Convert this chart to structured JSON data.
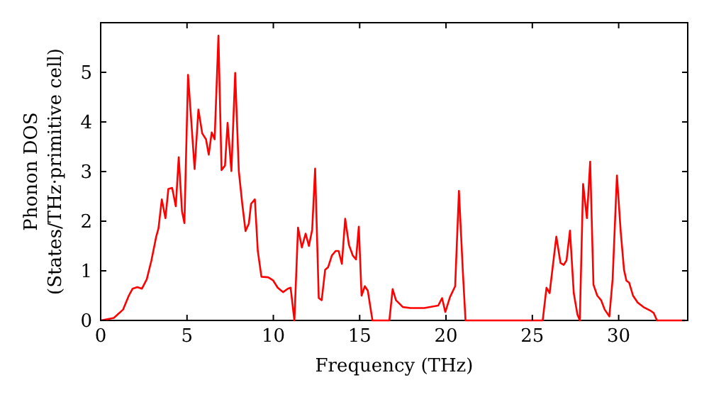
{
  "chart_data": {
    "type": "line",
    "xlabel": "Frequency (THz)",
    "ylabel": "Phonon DOS\n(States/THz·primitive cell)",
    "xlim": [
      0,
      34
    ],
    "ylim": [
      0,
      6
    ],
    "xticks": [
      0,
      5,
      10,
      15,
      20,
      25,
      30
    ],
    "yticks": [
      0,
      1,
      2,
      3,
      4,
      5
    ],
    "grid": false,
    "marker": "none",
    "line_style": "solid",
    "series": [
      {
        "color": "#ff0000",
        "x": [
          0,
          0.76,
          1.3,
          1.63,
          1.85,
          2.12,
          2.39,
          2.67,
          2.94,
          3.21,
          3.35,
          3.54,
          3.75,
          3.92,
          4.14,
          4.35,
          4.52,
          4.71,
          4.85,
          5.06,
          5.33,
          5.44,
          5.66,
          5.88,
          6.1,
          6.26,
          6.43,
          6.6,
          6.82,
          7.0,
          7.2,
          7.35,
          7.57,
          7.79,
          8.0,
          8.2,
          8.39,
          8.58,
          8.71,
          8.93,
          9.1,
          9.31,
          9.7,
          9.98,
          10.25,
          10.56,
          10.84,
          11.0,
          11.22,
          11.43,
          11.65,
          11.87,
          12.06,
          12.25,
          12.42,
          12.63,
          12.8,
          13.0,
          13.17,
          13.39,
          13.61,
          13.78,
          13.97,
          14.16,
          14.38,
          14.6,
          14.79,
          14.95,
          15.11,
          15.3,
          15.47,
          15.74,
          16.72,
          16.91,
          17.1,
          17.5,
          17.93,
          18.74,
          19.55,
          19.77,
          19.96,
          20.23,
          20.53,
          20.75,
          20.97,
          21.13,
          25.6,
          25.82,
          26.0,
          26.39,
          26.63,
          26.82,
          26.98,
          27.18,
          27.4,
          27.61,
          27.75,
          27.94,
          28.16,
          28.35,
          28.54,
          28.76,
          28.98,
          29.19,
          29.46,
          29.65,
          29.9,
          30.12,
          30.31,
          30.45,
          30.61,
          30.83,
          31.1,
          31.43,
          31.87,
          32.03,
          32.22,
          33.85
        ],
        "values": [
          0,
          0.05,
          0.22,
          0.5,
          0.64,
          0.67,
          0.64,
          0.83,
          1.21,
          1.68,
          1.86,
          2.44,
          2.06,
          2.65,
          2.67,
          2.3,
          3.29,
          2.2,
          1.96,
          4.95,
          3.6,
          3.05,
          4.25,
          3.77,
          3.65,
          3.34,
          3.79,
          3.65,
          5.74,
          3.03,
          3.12,
          3.98,
          3.01,
          4.99,
          3.01,
          2.35,
          1.8,
          1.95,
          2.35,
          2.44,
          1.4,
          0.88,
          0.87,
          0.81,
          0.66,
          0.57,
          0.64,
          0.66,
          0,
          1.87,
          1.47,
          1.75,
          1.5,
          1.83,
          3.06,
          0.45,
          0.41,
          1.02,
          1.07,
          1.31,
          1.4,
          1.4,
          1.14,
          2.05,
          1.52,
          1.31,
          1.23,
          1.89,
          0.5,
          0.69,
          0.6,
          0,
          0,
          0.63,
          0.41,
          0.27,
          0.25,
          0.25,
          0.3,
          0.45,
          0.17,
          0.47,
          0.69,
          2.61,
          1.02,
          0,
          0,
          0.66,
          0.55,
          1.69,
          1.16,
          1.12,
          1.21,
          1.81,
          0.55,
          0.12,
          0,
          2.75,
          2.06,
          3.2,
          0.72,
          0.5,
          0.41,
          0.22,
          0.08,
          0.83,
          2.92,
          1.78,
          1.02,
          0.8,
          0.76,
          0.5,
          0.36,
          0.27,
          0.19,
          0.15,
          0,
          0
        ]
      }
    ]
  }
}
